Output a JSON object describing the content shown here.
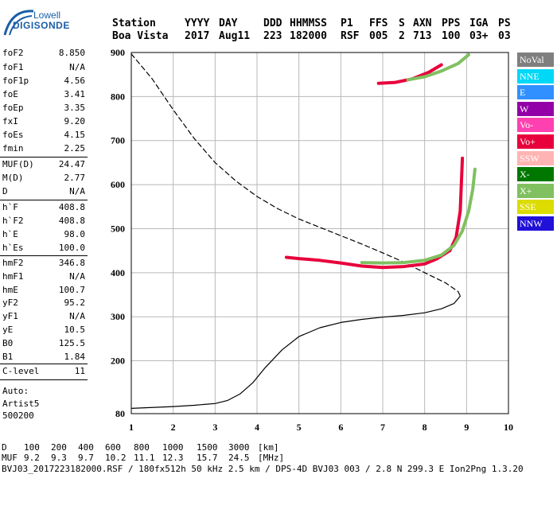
{
  "logo": {
    "line1": "Lowell",
    "line2": "DIGISONDE"
  },
  "header": {
    "labels": [
      "Station",
      "YYYY",
      "DAY",
      "DDD",
      "HHMMSS",
      "P1",
      "FFS",
      "S",
      "AXN",
      "PPS",
      "IGA",
      "PS"
    ],
    "values": [
      "Boa Vista",
      "2017",
      "Aug11",
      "223",
      "182000",
      "RSF",
      "005",
      "2",
      "713",
      "100",
      "03+",
      "03"
    ]
  },
  "params": {
    "group1": [
      {
        "name": "foF2",
        "value": "8.850"
      },
      {
        "name": "foF1",
        "value": "N/A"
      },
      {
        "name": "foF1p",
        "value": "4.56"
      },
      {
        "name": "foE",
        "value": "3.41"
      },
      {
        "name": "foEp",
        "value": "3.35"
      },
      {
        "name": "fxI",
        "value": "9.20"
      },
      {
        "name": "foEs",
        "value": "4.15"
      },
      {
        "name": "fmin",
        "value": "2.25"
      }
    ],
    "group2": [
      {
        "name": "MUF(D)",
        "value": "24.47"
      },
      {
        "name": "M(D)",
        "value": "2.77"
      },
      {
        "name": "D",
        "value": "N/A"
      }
    ],
    "group3": [
      {
        "name": "h`F",
        "value": "408.8"
      },
      {
        "name": "h`F2",
        "value": "408.8"
      },
      {
        "name": "h`E",
        "value": "98.0"
      },
      {
        "name": "h`Es",
        "value": "100.0"
      }
    ],
    "group4": [
      {
        "name": "hmF2",
        "value": "346.8"
      },
      {
        "name": "hmF1",
        "value": "N/A"
      },
      {
        "name": "hmE",
        "value": "100.7"
      },
      {
        "name": "yF2",
        "value": "95.2"
      },
      {
        "name": "yF1",
        "value": "N/A"
      },
      {
        "name": "yE",
        "value": "10.5"
      },
      {
        "name": "B0",
        "value": "125.5"
      },
      {
        "name": "B1",
        "value": "1.84"
      }
    ],
    "group5": [
      {
        "name": "C-level",
        "value": "11"
      }
    ],
    "autoscaling": [
      "Auto:",
      "Artist5",
      "500200"
    ]
  },
  "legend": [
    {
      "label": "NoVal",
      "color": "#7f7f7f"
    },
    {
      "label": "NNE",
      "color": "#00d8f8"
    },
    {
      "label": "E",
      "color": "#3090ff"
    },
    {
      "label": "W",
      "color": "#9400a8"
    },
    {
      "label": "Vo-",
      "color": "#ff40b0"
    },
    {
      "label": "Vo+",
      "color": "#e8003c"
    },
    {
      "label": "SSW",
      "color": "#ffb4b4"
    },
    {
      "label": "X-",
      "color": "#007800"
    },
    {
      "label": "X+",
      "color": "#80c060"
    },
    {
      "label": "SSE",
      "color": "#dcdc00"
    },
    {
      "label": "NNW",
      "color": "#2010d8"
    }
  ],
  "footer": {
    "d_label": "D",
    "d_values": [
      "100",
      "200",
      "400",
      "600",
      "800",
      "1000",
      "1500",
      "3000",
      "[km]"
    ],
    "muf_label": "MUF",
    "muf_values": [
      "9.2",
      "9.3",
      "9.7",
      "10.2",
      "11.1",
      "12.3",
      "15.7",
      "24.5",
      "[MHz]"
    ],
    "info": "BVJ03_2017223182000.RSF / 180fx512h 50 kHz 2.5 km / DPS-4D BVJ03 003 / 2.8 N 299.3 E Ion2Png 1.3.20"
  },
  "chart_data": {
    "type": "scatter",
    "title": "",
    "xlabel": "",
    "ylabel": "",
    "xlim": [
      1,
      10
    ],
    "ylim": [
      80,
      900
    ],
    "xticks": [
      1,
      2,
      3,
      4,
      5,
      6,
      7,
      8,
      9,
      10
    ],
    "yticks": [
      80,
      200,
      300,
      400,
      500,
      600,
      700,
      800,
      900
    ],
    "grid": true,
    "legend_position": "right",
    "series": [
      {
        "name": "",
        "style": "solid",
        "color": "#000000",
        "x": [
          1.0,
          2.0,
          2.5,
          3.0,
          3.3,
          3.6,
          3.9,
          4.2,
          4.6,
          5.0,
          5.5,
          6.0,
          6.5,
          7.0,
          7.5,
          8.0,
          8.4,
          8.7,
          8.85
        ],
        "y": [
          92,
          96,
          99,
          103,
          110,
          125,
          150,
          185,
          225,
          255,
          275,
          287,
          294,
          299,
          303,
          309,
          318,
          330,
          347
        ]
      },
      {
        "name": "",
        "style": "dashed",
        "color": "#000000",
        "x": [
          1.0,
          1.5,
          2.0,
          2.5,
          3.0,
          3.5,
          4.0,
          4.5,
          5.0,
          5.5,
          6.0,
          6.5,
          7.0,
          7.5,
          8.0,
          8.5,
          8.8,
          8.85
        ],
        "y": [
          897,
          840,
          770,
          705,
          650,
          608,
          573,
          545,
          522,
          503,
          484,
          465,
          445,
          424,
          400,
          377,
          357,
          347
        ]
      },
      {
        "name": "Vo+",
        "color": "#e8003c",
        "x": [
          4.7,
          5.0,
          5.5,
          6.0,
          6.5,
          7.0,
          7.5,
          8.0,
          8.3,
          8.6,
          8.75,
          8.85,
          8.9
        ],
        "y": [
          435,
          432,
          428,
          422,
          415,
          412,
          414,
          420,
          432,
          450,
          480,
          540,
          660
        ]
      },
      {
        "name": "X+",
        "color": "#80c060",
        "x": [
          6.5,
          7.0,
          7.5,
          8.0,
          8.4,
          8.7,
          8.9,
          9.05,
          9.15,
          9.2
        ],
        "y": [
          423,
          422,
          423,
          428,
          440,
          462,
          495,
          540,
          590,
          635
        ]
      },
      {
        "name": "Vo+",
        "color": "#e8003c",
        "x": [
          6.9,
          7.3,
          7.7,
          8.1,
          8.4
        ],
        "y": [
          830,
          832,
          840,
          855,
          872
        ]
      },
      {
        "name": "X+",
        "color": "#80c060",
        "x": [
          7.6,
          8.0,
          8.4,
          8.8,
          9.05
        ],
        "y": [
          838,
          845,
          858,
          875,
          895
        ]
      }
    ]
  }
}
